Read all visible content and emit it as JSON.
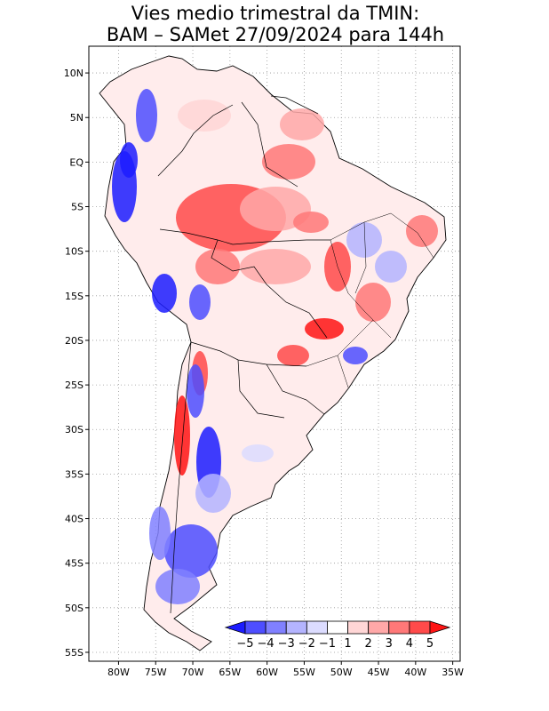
{
  "title": {
    "line1": "Vies medio trimestral da TMIN:",
    "line2": "BAM – SAMet 27/09/2024  para 144h"
  },
  "map": {
    "lon_range": [
      -84,
      -34
    ],
    "lat_range": [
      -56,
      13
    ],
    "x_ticks": [
      {
        "lon": -80,
        "label": "80W"
      },
      {
        "lon": -75,
        "label": "75W"
      },
      {
        "lon": -70,
        "label": "70W"
      },
      {
        "lon": -65,
        "label": "65W"
      },
      {
        "lon": -60,
        "label": "60W"
      },
      {
        "lon": -55,
        "label": "55W"
      },
      {
        "lon": -50,
        "label": "50W"
      },
      {
        "lon": -45,
        "label": "45W"
      },
      {
        "lon": -40,
        "label": "40W"
      },
      {
        "lon": -35,
        "label": "35W"
      }
    ],
    "y_ticks": [
      {
        "lat": 10,
        "label": "10N"
      },
      {
        "lat": 5,
        "label": "5N"
      },
      {
        "lat": 0,
        "label": "EQ"
      },
      {
        "lat": -5,
        "label": "5S"
      },
      {
        "lat": -10,
        "label": "10S"
      },
      {
        "lat": -15,
        "label": "15S"
      },
      {
        "lat": -20,
        "label": "20S"
      },
      {
        "lat": -25,
        "label": "25S"
      },
      {
        "lat": -30,
        "label": "30S"
      },
      {
        "lat": -35,
        "label": "35S"
      },
      {
        "lat": -40,
        "label": "40S"
      },
      {
        "lat": -45,
        "label": "45S"
      },
      {
        "lat": -50,
        "label": "50S"
      },
      {
        "lat": -55,
        "label": "55S"
      }
    ],
    "grid": "dotted"
  },
  "colorbar": {
    "bins": [
      {
        "color": "#1c1cff"
      },
      {
        "color": "#4e4eff"
      },
      {
        "color": "#8080ff"
      },
      {
        "color": "#b4b4ff"
      },
      {
        "color": "#dcdcff"
      },
      {
        "color": "#ffffff"
      },
      {
        "color": "#ffd6d6"
      },
      {
        "color": "#ffa8a8"
      },
      {
        "color": "#ff7878"
      },
      {
        "color": "#ff4a4a"
      },
      {
        "color": "#ff1414"
      }
    ],
    "labels": [
      "−5",
      "−4",
      "−3",
      "−2",
      "−1",
      "1",
      "2",
      "3",
      "4",
      "5"
    ]
  }
}
